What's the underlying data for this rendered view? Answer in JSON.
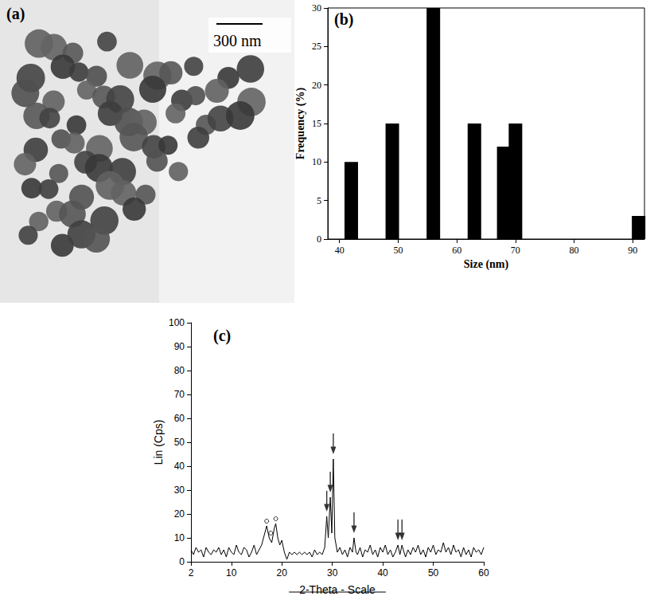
{
  "image_panel": {
    "title": "(a)",
    "scale_bar": "300 nm"
  },
  "chart_data": [
    {
      "type": "bar",
      "title": "(b)",
      "xlabel": "Size (nm)",
      "ylabel": "Frequency (%)",
      "x": [
        42,
        49,
        56,
        63,
        68,
        70,
        91
      ],
      "values": [
        10,
        15,
        30,
        15,
        12,
        15,
        3
      ],
      "color": "#000000",
      "xlim": [
        38,
        92
      ],
      "xticks": [
        40,
        50,
        60,
        70,
        80,
        90
      ],
      "ylim": [
        0,
        30
      ],
      "yticks": [
        0,
        5,
        10,
        15,
        20,
        25,
        30
      ],
      "grid": false
    },
    {
      "type": "line",
      "title": "(c)",
      "xlabel": "2-Theta - Scale",
      "ylabel": "Lin (Cps)",
      "x": [
        2,
        2.5,
        3,
        3.5,
        4,
        4.5,
        5,
        5.5,
        6,
        6.5,
        7,
        7.5,
        8,
        8.5,
        9,
        9.5,
        10,
        10.5,
        11,
        11.5,
        12,
        12.5,
        13,
        13.5,
        14,
        14.5,
        15,
        15.5,
        16,
        16.5,
        17,
        17.5,
        18,
        18.5,
        18.8,
        19.2,
        19.6,
        20,
        20.5,
        21,
        21.5,
        22,
        22.5,
        23,
        23.5,
        24,
        24.5,
        25,
        25.5,
        26,
        26.5,
        27,
        27.5,
        28,
        28.5,
        28.9,
        29.2,
        29.6,
        29.9,
        30.2,
        30.5,
        31,
        31.5,
        32,
        32.5,
        33,
        33.5,
        34,
        34.3,
        34.7,
        35,
        35.5,
        36,
        36.5,
        37,
        37.5,
        38,
        38.5,
        39,
        39.5,
        40,
        40.5,
        41,
        41.5,
        42,
        42.5,
        43,
        43.4,
        43.8,
        44.2,
        44.5,
        45,
        45.5,
        46,
        46.5,
        47,
        47.5,
        48,
        48.5,
        49,
        49.5,
        50,
        50.5,
        51,
        51.5,
        52,
        52.5,
        53,
        53.5,
        54,
        54.5,
        55,
        55.5,
        56,
        56.5,
        57,
        57.5,
        58,
        58.5,
        59,
        59.5,
        60
      ],
      "values": [
        5,
        3,
        6,
        4,
        5,
        2,
        6,
        4,
        3,
        5,
        4,
        6,
        3,
        5,
        2,
        6,
        4,
        3,
        7,
        4,
        3,
        6,
        5,
        2,
        4,
        7,
        3,
        5,
        7,
        11,
        15,
        10,
        8,
        14,
        16,
        10,
        7,
        9,
        4,
        1,
        4,
        3,
        4,
        3,
        4,
        3,
        4,
        3,
        4,
        2,
        5,
        3,
        4,
        3,
        6,
        19,
        10,
        27,
        12,
        43,
        10,
        4,
        6,
        3,
        5,
        2,
        6,
        4,
        10,
        4,
        3,
        6,
        2,
        5,
        4,
        7,
        3,
        5,
        2,
        6,
        4,
        7,
        3,
        5,
        2,
        4,
        7,
        3,
        7,
        4,
        2,
        5,
        3,
        6,
        4,
        7,
        3,
        5,
        2,
        6,
        4,
        7,
        3,
        5,
        4,
        8,
        4,
        6,
        3,
        7,
        4,
        5,
        2,
        6,
        3,
        5,
        2,
        6,
        4,
        5,
        3,
        6
      ],
      "color": "#000000",
      "arrows": [
        [
          28.9,
          21
        ],
        [
          29.6,
          29
        ],
        [
          30.2,
          45
        ],
        [
          34.3,
          12
        ],
        [
          43,
          9
        ],
        [
          43.8,
          9
        ]
      ],
      "circles": [
        [
          17,
          17
        ],
        [
          17.8,
          12
        ],
        [
          18.8,
          18
        ]
      ],
      "xlim": [
        2,
        60
      ],
      "xticks": [
        2,
        10,
        20,
        30,
        40,
        50,
        60
      ],
      "ylim": [
        0,
        100
      ],
      "yticks": [
        0,
        10,
        20,
        30,
        40,
        50,
        60,
        70,
        80,
        90,
        100
      ],
      "grid": false
    }
  ]
}
